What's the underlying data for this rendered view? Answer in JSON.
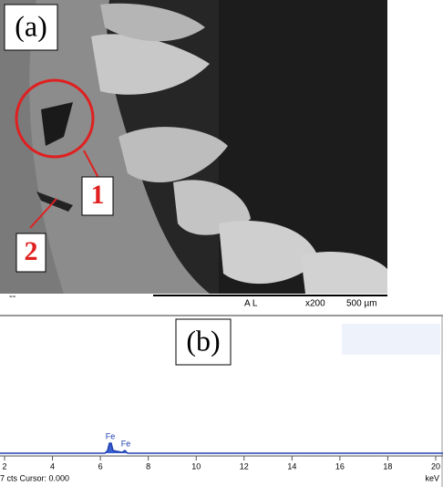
{
  "panel_a": {
    "label": "(a)",
    "markers": [
      "1",
      "2"
    ],
    "corner_text": "--",
    "scale_bar": {
      "detector": "A L",
      "magnification": "x200",
      "length": "500 µm"
    }
  },
  "panel_b": {
    "label": "(b)",
    "peak_labels": [
      "Fe",
      "Fe"
    ],
    "x_ticks": [
      "2",
      "4",
      "6",
      "8",
      "10",
      "12",
      "14",
      "16",
      "18",
      "20"
    ],
    "x_unit": "keV",
    "status": "7 cts Cursor: 0.000"
  }
}
